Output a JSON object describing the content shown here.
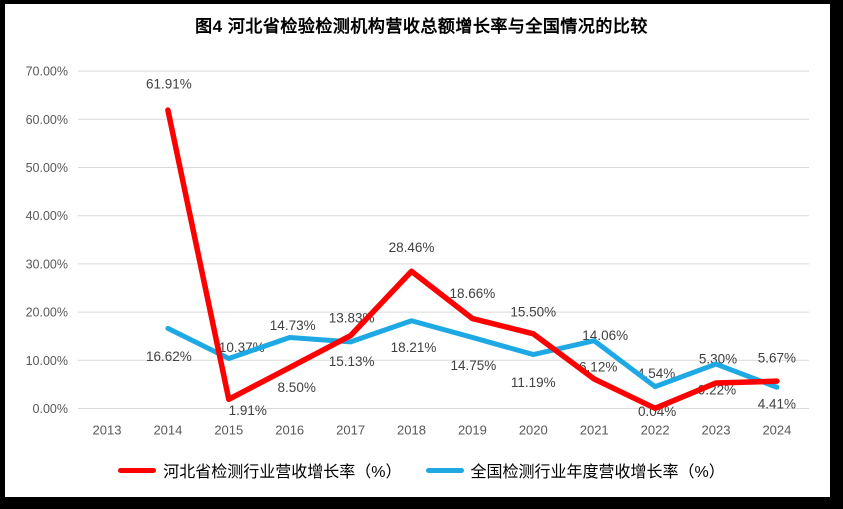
{
  "chart_data": {
    "type": "line",
    "title": "图4  河北省检验检测机构营收总额增长率与全国情况的比较",
    "categories": [
      "2013",
      "2014",
      "2015",
      "2016",
      "2017",
      "2018",
      "2019",
      "2020",
      "2021",
      "2022",
      "2023",
      "2024"
    ],
    "series": [
      {
        "name": "河北省检测行业营收增长率（%）",
        "color": "#FF0000",
        "stroke_width": 5.5,
        "values": [
          null,
          61.91,
          1.91,
          8.5,
          15.13,
          28.46,
          18.66,
          15.5,
          6.12,
          0.04,
          5.3,
          5.67
        ],
        "labels": [
          "",
          "61.91%",
          "1.91%",
          "8.50%",
          "15.13%",
          "28.46%",
          "18.66%",
          "15.50%",
          "6.12%",
          "0.04%",
          "5.30%",
          "5.67%"
        ],
        "label_offsets": [
          null,
          [
            1,
            -26
          ],
          [
            19,
            11
          ],
          [
            7,
            20
          ],
          [
            1,
            26
          ],
          [
            0,
            -24
          ],
          [
            0,
            -25
          ],
          [
            0,
            -22
          ],
          [
            4,
            -12
          ],
          [
            2,
            3
          ],
          [
            2,
            -24
          ],
          [
            0,
            -23
          ]
        ]
      },
      {
        "name": "全国检测行业年度营收增长率（%）",
        "color": "#1FA9E4",
        "stroke_width": 5,
        "values": [
          null,
          16.62,
          10.37,
          14.73,
          13.83,
          18.21,
          14.75,
          11.19,
          14.06,
          4.54,
          9.22,
          4.41
        ],
        "labels": [
          "",
          "16.62%",
          "10.37%",
          "14.73%",
          "13.83%",
          "18.21%",
          "14.75%",
          "11.19%",
          "14.06%",
          "4.54%",
          "9.22%",
          "4.41%"
        ],
        "label_offsets": [
          null,
          [
            1,
            28
          ],
          [
            13,
            -11
          ],
          [
            3,
            -12
          ],
          [
            1,
            -24
          ],
          [
            2,
            27
          ],
          [
            1,
            28
          ],
          [
            0,
            28
          ],
          [
            11,
            -5
          ],
          [
            1,
            -13
          ],
          [
            1,
            26
          ],
          [
            0,
            17
          ]
        ]
      }
    ],
    "y_axis": {
      "min": 0,
      "max": 70,
      "step": 10,
      "tick_labels": [
        "0.00%",
        "10.00%",
        "20.00%",
        "30.00%",
        "40.00%",
        "50.00%",
        "60.00%",
        "70.00%"
      ]
    },
    "grid": true,
    "legend_position": "bottom"
  },
  "styles": {
    "grid_color": "#D9D9D9",
    "axis_text_color": "#595959",
    "data_label_color": "#404040",
    "background": "#FFFFFF",
    "frame_color": "#000000"
  }
}
